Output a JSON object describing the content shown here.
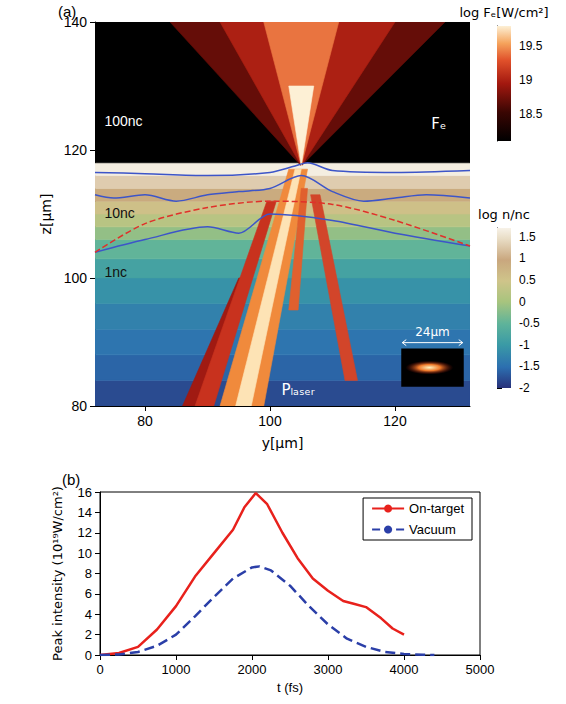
{
  "chart_data": [
    {
      "type": "heatmap",
      "label": "(a)",
      "x_label": "y[μm]",
      "y_label": "z[μm]",
      "xlim": [
        72,
        132
      ],
      "xticks": [
        80,
        100,
        120
      ],
      "ylim": [
        80,
        140
      ],
      "yticks": [
        80,
        100,
        120,
        140
      ],
      "grid": false,
      "density": {
        "title": "log n/nc",
        "z_edges": [
          80,
          84,
          88,
          92,
          96,
          100,
          103,
          106,
          108,
          110,
          112,
          114,
          116,
          118
        ],
        "values": [
          -1.8,
          -1.6,
          -1.45,
          -1.3,
          -1.1,
          -0.85,
          -0.5,
          -0.15,
          0.2,
          0.55,
          0.9,
          1.3,
          1.65
        ],
        "lim": [
          -2,
          1.7
        ],
        "ticks": [
          -2,
          -1.5,
          -1,
          -0.5,
          0,
          0.5,
          1,
          1.5
        ]
      },
      "flux": {
        "title": "log Fₑ[W/cm²]",
        "label": "Fₑ",
        "lim": [
          18.1,
          19.8
        ],
        "ticks": [
          18.5,
          19,
          19.5
        ],
        "regions": [
          {
            "y": [
              72,
              132,
              132,
              72
            ],
            "z": [
              118,
              118,
              140,
              140
            ],
            "value": 18.1
          },
          {
            "y": [
              105,
              128,
              84
            ],
            "z": [
              117.5,
              140,
              140
            ],
            "value": 18.7
          },
          {
            "y": [
              105,
              120,
              92
            ],
            "z": [
              117.5,
              140,
              140
            ],
            "value": 19.0
          },
          {
            "y": [
              105,
              111,
              99
            ],
            "z": [
              117.5,
              140,
              140
            ],
            "value": 19.4
          },
          {
            "y": [
              105,
              107,
              103
            ],
            "z": [
              117.5,
              130,
              130
            ],
            "value": 19.8
          }
        ]
      },
      "laser": {
        "label": "Pₗₐₛₑᵣ",
        "filaments": [
          {
            "y": [
              86,
              88,
              96,
              95
            ],
            "z": [
              80,
              80,
              100,
              100
            ],
            "color": "#a01a12"
          },
          {
            "y": [
              88,
              91,
              101,
              99.5
            ],
            "z": [
              80,
              80,
              112,
              112
            ],
            "color": "#c8321e"
          },
          {
            "y": [
              112,
              114,
              108,
              106.5
            ],
            "z": [
              84,
              84,
              113,
              113
            ],
            "color": "#d2452a"
          },
          {
            "y": [
              92,
              99,
              106,
              103
            ],
            "z": [
              80,
              80,
              117,
              117
            ],
            "color": "#f08a3c"
          },
          {
            "y": [
              103,
              104.5,
              106,
              105
            ],
            "z": [
              95,
              95,
              114,
              114
            ],
            "color": "#e0602e"
          },
          {
            "y": [
              94.5,
              97,
              105,
              104
            ],
            "z": [
              80,
              80,
              117,
              117
            ],
            "color": "#fde3b5"
          }
        ]
      },
      "contours": [
        {
          "label": "100nc",
          "color": "#3d55c8",
          "line_style": "solid",
          "y": [
            72,
            80,
            90,
            100,
            104,
            106,
            110,
            120,
            132
          ],
          "z": [
            116.5,
            116.3,
            116,
            116.5,
            117.5,
            118,
            116.8,
            116.5,
            116.8
          ]
        },
        {
          "label": "10nc",
          "color": "#3d55c8",
          "line_style": "solid",
          "y": [
            72,
            75,
            80,
            85,
            90,
            95,
            100,
            105,
            110,
            115,
            120,
            125,
            132
          ],
          "z": [
            113,
            112.5,
            113,
            112,
            113,
            113.5,
            114,
            116,
            113.5,
            112,
            112.5,
            113,
            112.5
          ]
        },
        {
          "label": "1nc",
          "color": "#3d55c8",
          "line_style": "solid",
          "y": [
            72,
            80,
            90,
            95,
            100,
            110,
            120,
            132
          ],
          "z": [
            104,
            106,
            108,
            107,
            110,
            109,
            107,
            105
          ]
        },
        {
          "color": "#e0302a",
          "line_style": "dashed",
          "y": [
            72,
            80,
            90,
            100,
            110,
            120,
            132
          ],
          "z": [
            104,
            108.5,
            111,
            112,
            111.5,
            109,
            105
          ]
        }
      ],
      "inset": {
        "label": "24μm"
      }
    },
    {
      "type": "line",
      "label": "(b)",
      "x_label": "t (fs)",
      "y_label": "Peak intensity (10¹⁹W/cm²)",
      "xlim": [
        0,
        5000
      ],
      "xticks": [
        0,
        1000,
        2000,
        3000,
        4000,
        5000
      ],
      "ylim": [
        0,
        16
      ],
      "yticks": [
        0,
        2,
        4,
        6,
        8,
        10,
        12,
        14,
        16
      ],
      "grid": false,
      "legend": "upper right",
      "series": [
        {
          "name": "On-target",
          "color": "#e8211c",
          "line_style": "solid",
          "x": [
            0,
            250,
            500,
            750,
            1000,
            1250,
            1500,
            1750,
            1900,
            2050,
            2200,
            2400,
            2600,
            2800,
            3000,
            3200,
            3350,
            3500,
            3700,
            3850,
            4000
          ],
          "values": [
            0,
            0.2,
            0.8,
            2.5,
            4.8,
            7.7,
            10,
            12.3,
            14.5,
            15.9,
            14.8,
            12,
            9.5,
            7.5,
            6.3,
            5.3,
            5,
            4.7,
            3.6,
            2.6,
            2
          ]
        },
        {
          "name": "Vacuum",
          "color": "#2b3fa8",
          "line_style": "dashed",
          "x": [
            0,
            250,
            500,
            750,
            1000,
            1250,
            1500,
            1750,
            2000,
            2100,
            2250,
            2500,
            2750,
            3000,
            3250,
            3500,
            3750,
            4000,
            4250,
            4400
          ],
          "values": [
            0,
            0.05,
            0.3,
            0.9,
            2,
            3.8,
            5.7,
            7.5,
            8.6,
            8.7,
            8.3,
            6.8,
            4.8,
            3,
            1.6,
            0.8,
            0.3,
            0.1,
            0.02,
            0
          ]
        }
      ]
    }
  ]
}
